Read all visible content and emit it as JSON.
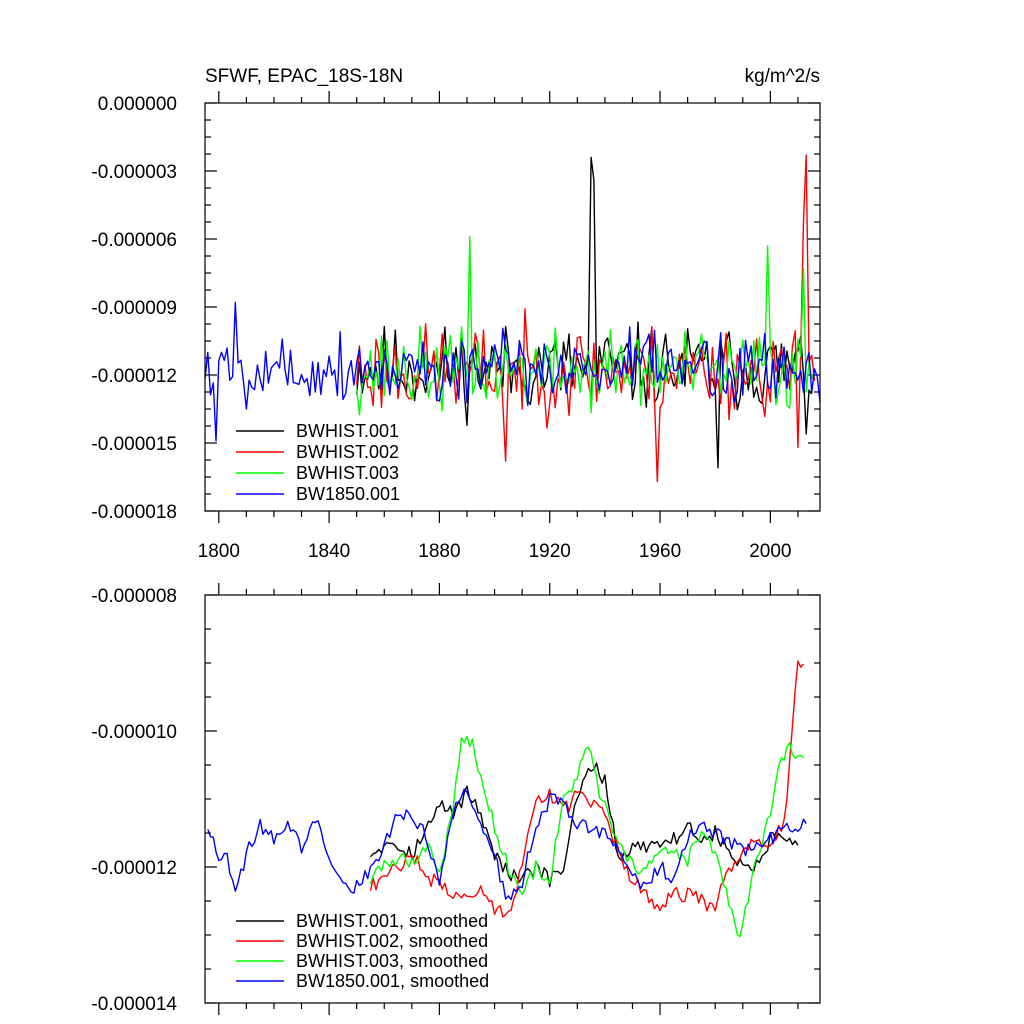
{
  "chart_data": [
    {
      "type": "line",
      "title_left": "SFWF, EPAC_18S-18N",
      "title_right": "kg/m^2/s",
      "xlim": [
        1795,
        2018
      ],
      "ylim": [
        -1.8e-05,
        0.0
      ],
      "x_ticks": [
        1800,
        1840,
        1880,
        1920,
        1960,
        2000
      ],
      "x_tick_labels": [
        "1800",
        "1840",
        "1880",
        "1920",
        "1960",
        "2000"
      ],
      "y_ticks": [
        0.0,
        -3e-06,
        -6e-06,
        -9e-06,
        -1.2e-05,
        -1.5e-05,
        -1.8e-05
      ],
      "y_tick_labels": [
        "0.000000",
        "-0.000003",
        "-0.000006",
        "-0.000009",
        "-0.000012",
        "-0.000015",
        "-0.000018"
      ],
      "legend": [
        "BWHIST.001",
        "BWHIST.002",
        "BWHIST.003",
        "BW1850.001"
      ],
      "series": [
        {
          "name": "BWHIST.001",
          "color": "#000000",
          "x_start": 1850,
          "x_end": 2015,
          "mean": -1.17e-05,
          "amp": 1.6e-06,
          "seed": 11,
          "peaks": [
            [
              1935,
              -2.4e-06
            ],
            [
              1936,
              -3.4e-06
            ],
            [
              2013,
              -1.46e-05
            ],
            [
              1981,
              -1.61e-05
            ]
          ]
        },
        {
          "name": "BWHIST.002",
          "color": "#ff0000",
          "x_start": 1850,
          "x_end": 2016,
          "mean": -1.18e-05,
          "amp": 1.7e-06,
          "seed": 23,
          "peaks": [
            [
              2013,
              -2.3e-06
            ],
            [
              2012,
              -5.2e-06
            ],
            [
              1959,
              -1.67e-05
            ],
            [
              1904,
              -1.58e-05
            ],
            [
              2010,
              -1.52e-05
            ]
          ]
        },
        {
          "name": "BWHIST.003",
          "color": "#00ff00",
          "x_start": 1850,
          "x_end": 2016,
          "mean": -1.18e-05,
          "amp": 1.5e-06,
          "seed": 37,
          "peaks": [
            [
              1891,
              -5.9e-06
            ],
            [
              1999,
              -6.3e-06
            ],
            [
              2012,
              -7.3e-06
            ]
          ]
        },
        {
          "name": "BW1850.001",
          "color": "#0000ff",
          "x_start": 1795,
          "x_end": 2018,
          "mean": -1.17e-05,
          "amp": 1.4e-06,
          "seed": 5,
          "peaks": [
            [
              1799,
              -1.49e-05
            ],
            [
              1806,
              -8.8e-06
            ],
            [
              2018,
              -1.32e-05
            ]
          ]
        }
      ]
    },
    {
      "type": "line",
      "title_left": "",
      "title_right": "",
      "xlim": [
        1795,
        2018
      ],
      "ylim": [
        -1.4e-05,
        -8e-06
      ],
      "x_ticks": [
        1800,
        1840,
        1880,
        1920,
        1960,
        2000
      ],
      "y_ticks": [
        -8e-06,
        -1e-05,
        -1.2e-05,
        -1.4e-05
      ],
      "y_tick_labels": [
        "-0.000008",
        "-0.000010",
        "-0.000012",
        "-0.000014"
      ],
      "legend": [
        "BWHIST.001, smoothed",
        "BWHIST.002, smoothed",
        "BWHIST.003, smoothed",
        "BW1850.001, smoothed"
      ],
      "series": [
        {
          "name": "BWHIST.001, smoothed",
          "color": "#000000",
          "knots": [
            [
              1855,
              -1.18e-05
            ],
            [
              1862,
              -1.16e-05
            ],
            [
              1870,
              -1.18e-05
            ],
            [
              1876,
              -1.14e-05
            ],
            [
              1880,
              -1.11e-05
            ],
            [
              1885,
              -1.12e-05
            ],
            [
              1890,
              -1.09e-05
            ],
            [
              1895,
              -1.12e-05
            ],
            [
              1900,
              -1.18e-05
            ],
            [
              1905,
              -1.21e-05
            ],
            [
              1910,
              -1.22e-05
            ],
            [
              1915,
              -1.2e-05
            ],
            [
              1920,
              -1.22e-05
            ],
            [
              1925,
              -1.2e-05
            ],
            [
              1930,
              -1.1e-05
            ],
            [
              1935,
              -1.05e-05
            ],
            [
              1940,
              -1.07e-05
            ],
            [
              1945,
              -1.19e-05
            ],
            [
              1950,
              -1.17e-05
            ],
            [
              1955,
              -1.17e-05
            ],
            [
              1960,
              -1.16e-05
            ],
            [
              1965,
              -1.16e-05
            ],
            [
              1970,
              -1.14e-05
            ],
            [
              1975,
              -1.16e-05
            ],
            [
              1980,
              -1.15e-05
            ],
            [
              1985,
              -1.18e-05
            ],
            [
              1990,
              -1.2e-05
            ],
            [
              1995,
              -1.2e-05
            ],
            [
              2000,
              -1.16e-05
            ],
            [
              2005,
              -1.16e-05
            ],
            [
              2010,
              -1.17e-05
            ]
          ]
        },
        {
          "name": "BWHIST.002, smoothed",
          "color": "#ff0000",
          "knots": [
            [
              1855,
              -1.23e-05
            ],
            [
              1862,
              -1.21e-05
            ],
            [
              1870,
              -1.18e-05
            ],
            [
              1876,
              -1.22e-05
            ],
            [
              1880,
              -1.22e-05
            ],
            [
              1885,
              -1.24e-05
            ],
            [
              1890,
              -1.24e-05
            ],
            [
              1895,
              -1.23e-05
            ],
            [
              1900,
              -1.26e-05
            ],
            [
              1905,
              -1.27e-05
            ],
            [
              1910,
              -1.2e-05
            ],
            [
              1915,
              -1.1e-05
            ],
            [
              1920,
              -1.09e-05
            ],
            [
              1925,
              -1.12e-05
            ],
            [
              1930,
              -1.09e-05
            ],
            [
              1935,
              -1.11e-05
            ],
            [
              1940,
              -1.12e-05
            ],
            [
              1945,
              -1.18e-05
            ],
            [
              1950,
              -1.22e-05
            ],
            [
              1955,
              -1.24e-05
            ],
            [
              1960,
              -1.26e-05
            ],
            [
              1965,
              -1.24e-05
            ],
            [
              1970,
              -1.24e-05
            ],
            [
              1975,
              -1.25e-05
            ],
            [
              1980,
              -1.26e-05
            ],
            [
              1985,
              -1.2e-05
            ],
            [
              1990,
              -1.18e-05
            ],
            [
              1995,
              -1.16e-05
            ],
            [
              2000,
              -1.16e-05
            ],
            [
              2005,
              -1.14e-05
            ],
            [
              2008,
              -1e-05
            ],
            [
              2010,
              -9e-06
            ],
            [
              2012,
              -9.1e-06
            ]
          ]
        },
        {
          "name": "BWHIST.003, smoothed",
          "color": "#00ff00",
          "knots": [
            [
              1855,
              -1.22e-05
            ],
            [
              1862,
              -1.19e-05
            ],
            [
              1870,
              -1.19e-05
            ],
            [
              1876,
              -1.17e-05
            ],
            [
              1880,
              -1.21e-05
            ],
            [
              1885,
              -1.11e-05
            ],
            [
              1888,
              -1.01e-05
            ],
            [
              1892,
              -1.02e-05
            ],
            [
              1895,
              -1.07e-05
            ],
            [
              1900,
              -1.14e-05
            ],
            [
              1905,
              -1.2e-05
            ],
            [
              1910,
              -1.24e-05
            ],
            [
              1915,
              -1.2e-05
            ],
            [
              1920,
              -1.22e-05
            ],
            [
              1925,
              -1.1e-05
            ],
            [
              1930,
              -1.07e-05
            ],
            [
              1934,
              -1.02e-05
            ],
            [
              1938,
              -1.09e-05
            ],
            [
              1945,
              -1.17e-05
            ],
            [
              1950,
              -1.2e-05
            ],
            [
              1955,
              -1.2e-05
            ],
            [
              1960,
              -1.18e-05
            ],
            [
              1965,
              -1.18e-05
            ],
            [
              1970,
              -1.19e-05
            ],
            [
              1975,
              -1.15e-05
            ],
            [
              1980,
              -1.18e-05
            ],
            [
              1985,
              -1.25e-05
            ],
            [
              1989,
              -1.31e-05
            ],
            [
              1993,
              -1.22e-05
            ],
            [
              1997,
              -1.17e-05
            ],
            [
              2000,
              -1.12e-05
            ],
            [
              2003,
              -1.06e-05
            ],
            [
              2007,
              -1.02e-05
            ],
            [
              2010,
              -1.04e-05
            ],
            [
              2012,
              -1.05e-05
            ]
          ]
        },
        {
          "name": "BW1850.001, smoothed",
          "color": "#0000ff",
          "knots": [
            [
              1796,
              -1.14e-05
            ],
            [
              1800,
              -1.18e-05
            ],
            [
              1803,
              -1.18e-05
            ],
            [
              1806,
              -1.24e-05
            ],
            [
              1810,
              -1.18e-05
            ],
            [
              1815,
              -1.14e-05
            ],
            [
              1820,
              -1.16e-05
            ],
            [
              1825,
              -1.14e-05
            ],
            [
              1830,
              -1.17e-05
            ],
            [
              1835,
              -1.13e-05
            ],
            [
              1840,
              -1.18e-05
            ],
            [
              1845,
              -1.22e-05
            ],
            [
              1850,
              -1.23e-05
            ],
            [
              1855,
              -1.2e-05
            ],
            [
              1860,
              -1.17e-05
            ],
            [
              1865,
              -1.12e-05
            ],
            [
              1870,
              -1.13e-05
            ],
            [
              1875,
              -1.15e-05
            ],
            [
              1880,
              -1.22e-05
            ],
            [
              1885,
              -1.12e-05
            ],
            [
              1888,
              -1.09e-05
            ],
            [
              1893,
              -1.11e-05
            ],
            [
              1898,
              -1.16e-05
            ],
            [
              1905,
              -1.25e-05
            ],
            [
              1910,
              -1.22e-05
            ],
            [
              1915,
              -1.14e-05
            ],
            [
              1920,
              -1.1e-05
            ],
            [
              1925,
              -1.11e-05
            ],
            [
              1930,
              -1.14e-05
            ],
            [
              1935,
              -1.14e-05
            ],
            [
              1940,
              -1.15e-05
            ],
            [
              1945,
              -1.18e-05
            ],
            [
              1950,
              -1.21e-05
            ],
            [
              1955,
              -1.23e-05
            ],
            [
              1960,
              -1.2e-05
            ],
            [
              1965,
              -1.22e-05
            ],
            [
              1970,
              -1.16e-05
            ],
            [
              1975,
              -1.14e-05
            ],
            [
              1980,
              -1.15e-05
            ],
            [
              1985,
              -1.16e-05
            ],
            [
              1990,
              -1.18e-05
            ],
            [
              1995,
              -1.17e-05
            ],
            [
              2000,
              -1.16e-05
            ],
            [
              2005,
              -1.14e-05
            ],
            [
              2010,
              -1.14e-05
            ],
            [
              2013,
              -1.14e-05
            ]
          ]
        }
      ]
    }
  ]
}
